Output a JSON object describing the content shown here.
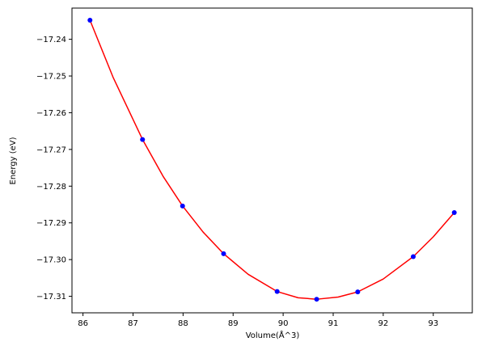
{
  "chart_data": {
    "type": "scatter",
    "title": "",
    "xlabel": "Volume(Å^3)",
    "ylabel": "Energy (eV)",
    "xlim": [
      85.78,
      93.78
    ],
    "ylim": [
      -17.3145,
      -17.2315
    ],
    "xticks": [
      86,
      87,
      88,
      89,
      90,
      91,
      92,
      93
    ],
    "xtick_labels": [
      "86",
      "87",
      "88",
      "89",
      "90",
      "91",
      "92",
      "93"
    ],
    "yticks": [
      -17.24,
      -17.25,
      -17.26,
      -17.27,
      -17.28,
      -17.29,
      -17.3,
      -17.31
    ],
    "ytick_labels": [
      "−17.24",
      "−17.25",
      "−17.26",
      "−17.27",
      "−17.28",
      "−17.29",
      "−17.30",
      "−17.31"
    ],
    "grid": false,
    "series": [
      {
        "kind": "points",
        "color": "#0000ff",
        "x": [
          86.14,
          87.19,
          87.99,
          88.81,
          89.88,
          90.67,
          91.49,
          92.6,
          93.42
        ],
        "y": [
          -17.2348,
          -17.2673,
          -17.2854,
          -17.2984,
          -17.3087,
          -17.3108,
          -17.3088,
          -17.2992,
          -17.2872
        ]
      },
      {
        "kind": "fit-curve",
        "color": "#ff0000",
        "x": [
          86.14,
          86.6,
          87.19,
          87.6,
          87.99,
          88.4,
          88.81,
          89.3,
          89.88,
          90.3,
          90.67,
          91.1,
          91.49,
          92.0,
          92.6,
          93.0,
          93.42
        ],
        "y": [
          -17.2348,
          -17.2503,
          -17.2673,
          -17.2773,
          -17.2854,
          -17.2925,
          -17.2984,
          -17.304,
          -17.3087,
          -17.3104,
          -17.3108,
          -17.3102,
          -17.3088,
          -17.3053,
          -17.2992,
          -17.2938,
          -17.2872
        ]
      }
    ]
  }
}
